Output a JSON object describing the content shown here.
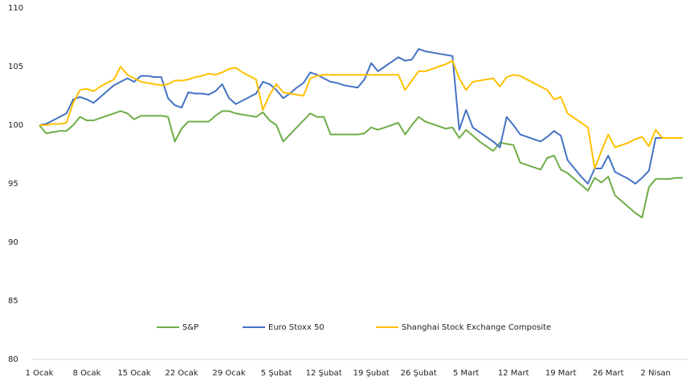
{
  "chart_data": {
    "type": "line",
    "categories": [
      "1 Ocak",
      null,
      null,
      null,
      null,
      null,
      null,
      "8 Ocak",
      null,
      null,
      null,
      null,
      null,
      null,
      "15 Ocak",
      null,
      null,
      null,
      null,
      null,
      null,
      "22 Ocak",
      null,
      null,
      null,
      null,
      null,
      null,
      "29 Ocak",
      null,
      null,
      null,
      null,
      null,
      null,
      "5 Şubat",
      null,
      null,
      null,
      null,
      null,
      null,
      "12 Şubat",
      null,
      null,
      null,
      null,
      null,
      null,
      "19 Şubat",
      null,
      null,
      null,
      null,
      null,
      null,
      "26 Şubat",
      null,
      null,
      null,
      null,
      null,
      null,
      "5 Mart",
      null,
      null,
      null,
      null,
      null,
      null,
      "12 Mart",
      null,
      null,
      null,
      null,
      null,
      null,
      "19 Mart",
      null,
      null,
      null,
      null,
      null,
      null,
      "26 Mart",
      null,
      null,
      null,
      null,
      null,
      null,
      "2 Nisan",
      null,
      null,
      null,
      null
    ],
    "series": [
      {
        "name": "S&P",
        "color": "#70ad47",
        "values": [
          100,
          99.3,
          99.4,
          99.5,
          99.5,
          100,
          100.7,
          100.4,
          100.4,
          100.6,
          100.8,
          101,
          101.2,
          101,
          100.5,
          100.8,
          100.8,
          100.8,
          100.8,
          100.7,
          98.6,
          99.7,
          100.3,
          100.3,
          100.3,
          100.3,
          100.8,
          101.2,
          101.2,
          101,
          100.9,
          100.8,
          100.7,
          101.1,
          100.4,
          100,
          98.6,
          99.2,
          99.8,
          100.4,
          101,
          100.7,
          100.7,
          99.2,
          99.2,
          99.2,
          99.2,
          99.2,
          99.3,
          99.8,
          99.6,
          99.8,
          100,
          100.2,
          99.2,
          100,
          100.7,
          100.3,
          100.1,
          99.9,
          99.7,
          99.8,
          98.9,
          99.6,
          99.1,
          98.6,
          98.2,
          97.8,
          98.5,
          98.4,
          98.3,
          96.8,
          96.6,
          96.4,
          96.2,
          97.2,
          97.4,
          96.2,
          95.9,
          95.4,
          94.9,
          94.4,
          95.5,
          95.1,
          95.6,
          94,
          93.5,
          93,
          92.5,
          92.1,
          94.7,
          95.4,
          95.4,
          95.4,
          95.5,
          95.5
        ]
      },
      {
        "name": "Euro Stoxx 50",
        "color": "#4472c4",
        "values": [
          100,
          100.1,
          100.4,
          100.7,
          101,
          102.2,
          102.4,
          102.2,
          101.9,
          102.4,
          102.9,
          103.4,
          103.7,
          104,
          103.7,
          104.2,
          104.2,
          104.1,
          104.1,
          102.3,
          101.7,
          101.5,
          102.8,
          102.7,
          102.7,
          102.6,
          102.9,
          103.5,
          102.3,
          101.8,
          102.1,
          102.4,
          102.7,
          103.7,
          103.5,
          103,
          102.3,
          102.7,
          103.2,
          103.6,
          104.5,
          104.3,
          104,
          103.7,
          103.6,
          103.4,
          103.3,
          103.2,
          103.9,
          105.3,
          104.6,
          105,
          105.4,
          105.8,
          105.5,
          105.6,
          106.5,
          106.3,
          106.2,
          106.1,
          106,
          105.9,
          99.6,
          101.3,
          99.8,
          99.4,
          99,
          98.6,
          98.1,
          100.7,
          100,
          99.2,
          99,
          98.8,
          98.6,
          99,
          99.5,
          99.1,
          97,
          96.3,
          95.6,
          95,
          96.3,
          96.3,
          97.4,
          96,
          95.7,
          95.4,
          95,
          95.5,
          96.1,
          98.9,
          98.9,
          98.9,
          98.9,
          98.9
        ]
      },
      {
        "name": "Shanghai Stock Exchange Composite",
        "color": "#ffc000",
        "values": [
          100,
          100,
          100.1,
          100.1,
          100.2,
          101.9,
          103,
          103.1,
          102.9,
          103.3,
          103.6,
          103.9,
          105,
          104.3,
          104,
          103.7,
          103.6,
          103.5,
          103.4,
          103.5,
          103.8,
          103.8,
          103.9,
          104.1,
          104.2,
          104.4,
          104.3,
          104.5,
          104.8,
          104.9,
          104.5,
          104.2,
          103.9,
          101.3,
          102.6,
          103.5,
          102.8,
          102.7,
          102.6,
          102.5,
          104,
          104.2,
          104.3,
          104.3,
          104.3,
          104.3,
          104.3,
          104.3,
          104.3,
          104.3,
          104.3,
          104.3,
          104.3,
          104.3,
          103,
          103.8,
          104.6,
          104.6,
          104.8,
          105,
          105.2,
          105.5,
          104,
          103,
          103.7,
          103.8,
          103.9,
          104,
          103.3,
          104.1,
          104.3,
          104.2,
          103.9,
          103.6,
          103.3,
          103,
          102.2,
          102.4,
          101,
          100.6,
          100.2,
          99.8,
          96.3,
          97.8,
          99.2,
          98.1,
          98.3,
          98.5,
          98.8,
          99,
          98.2,
          99.6,
          98.9,
          98.9,
          98.9,
          98.9
        ]
      }
    ],
    "ylim": [
      80,
      110
    ],
    "yticks": [
      80,
      85,
      90,
      95,
      100,
      105,
      110
    ],
    "grid": false,
    "legend": "bottom"
  }
}
